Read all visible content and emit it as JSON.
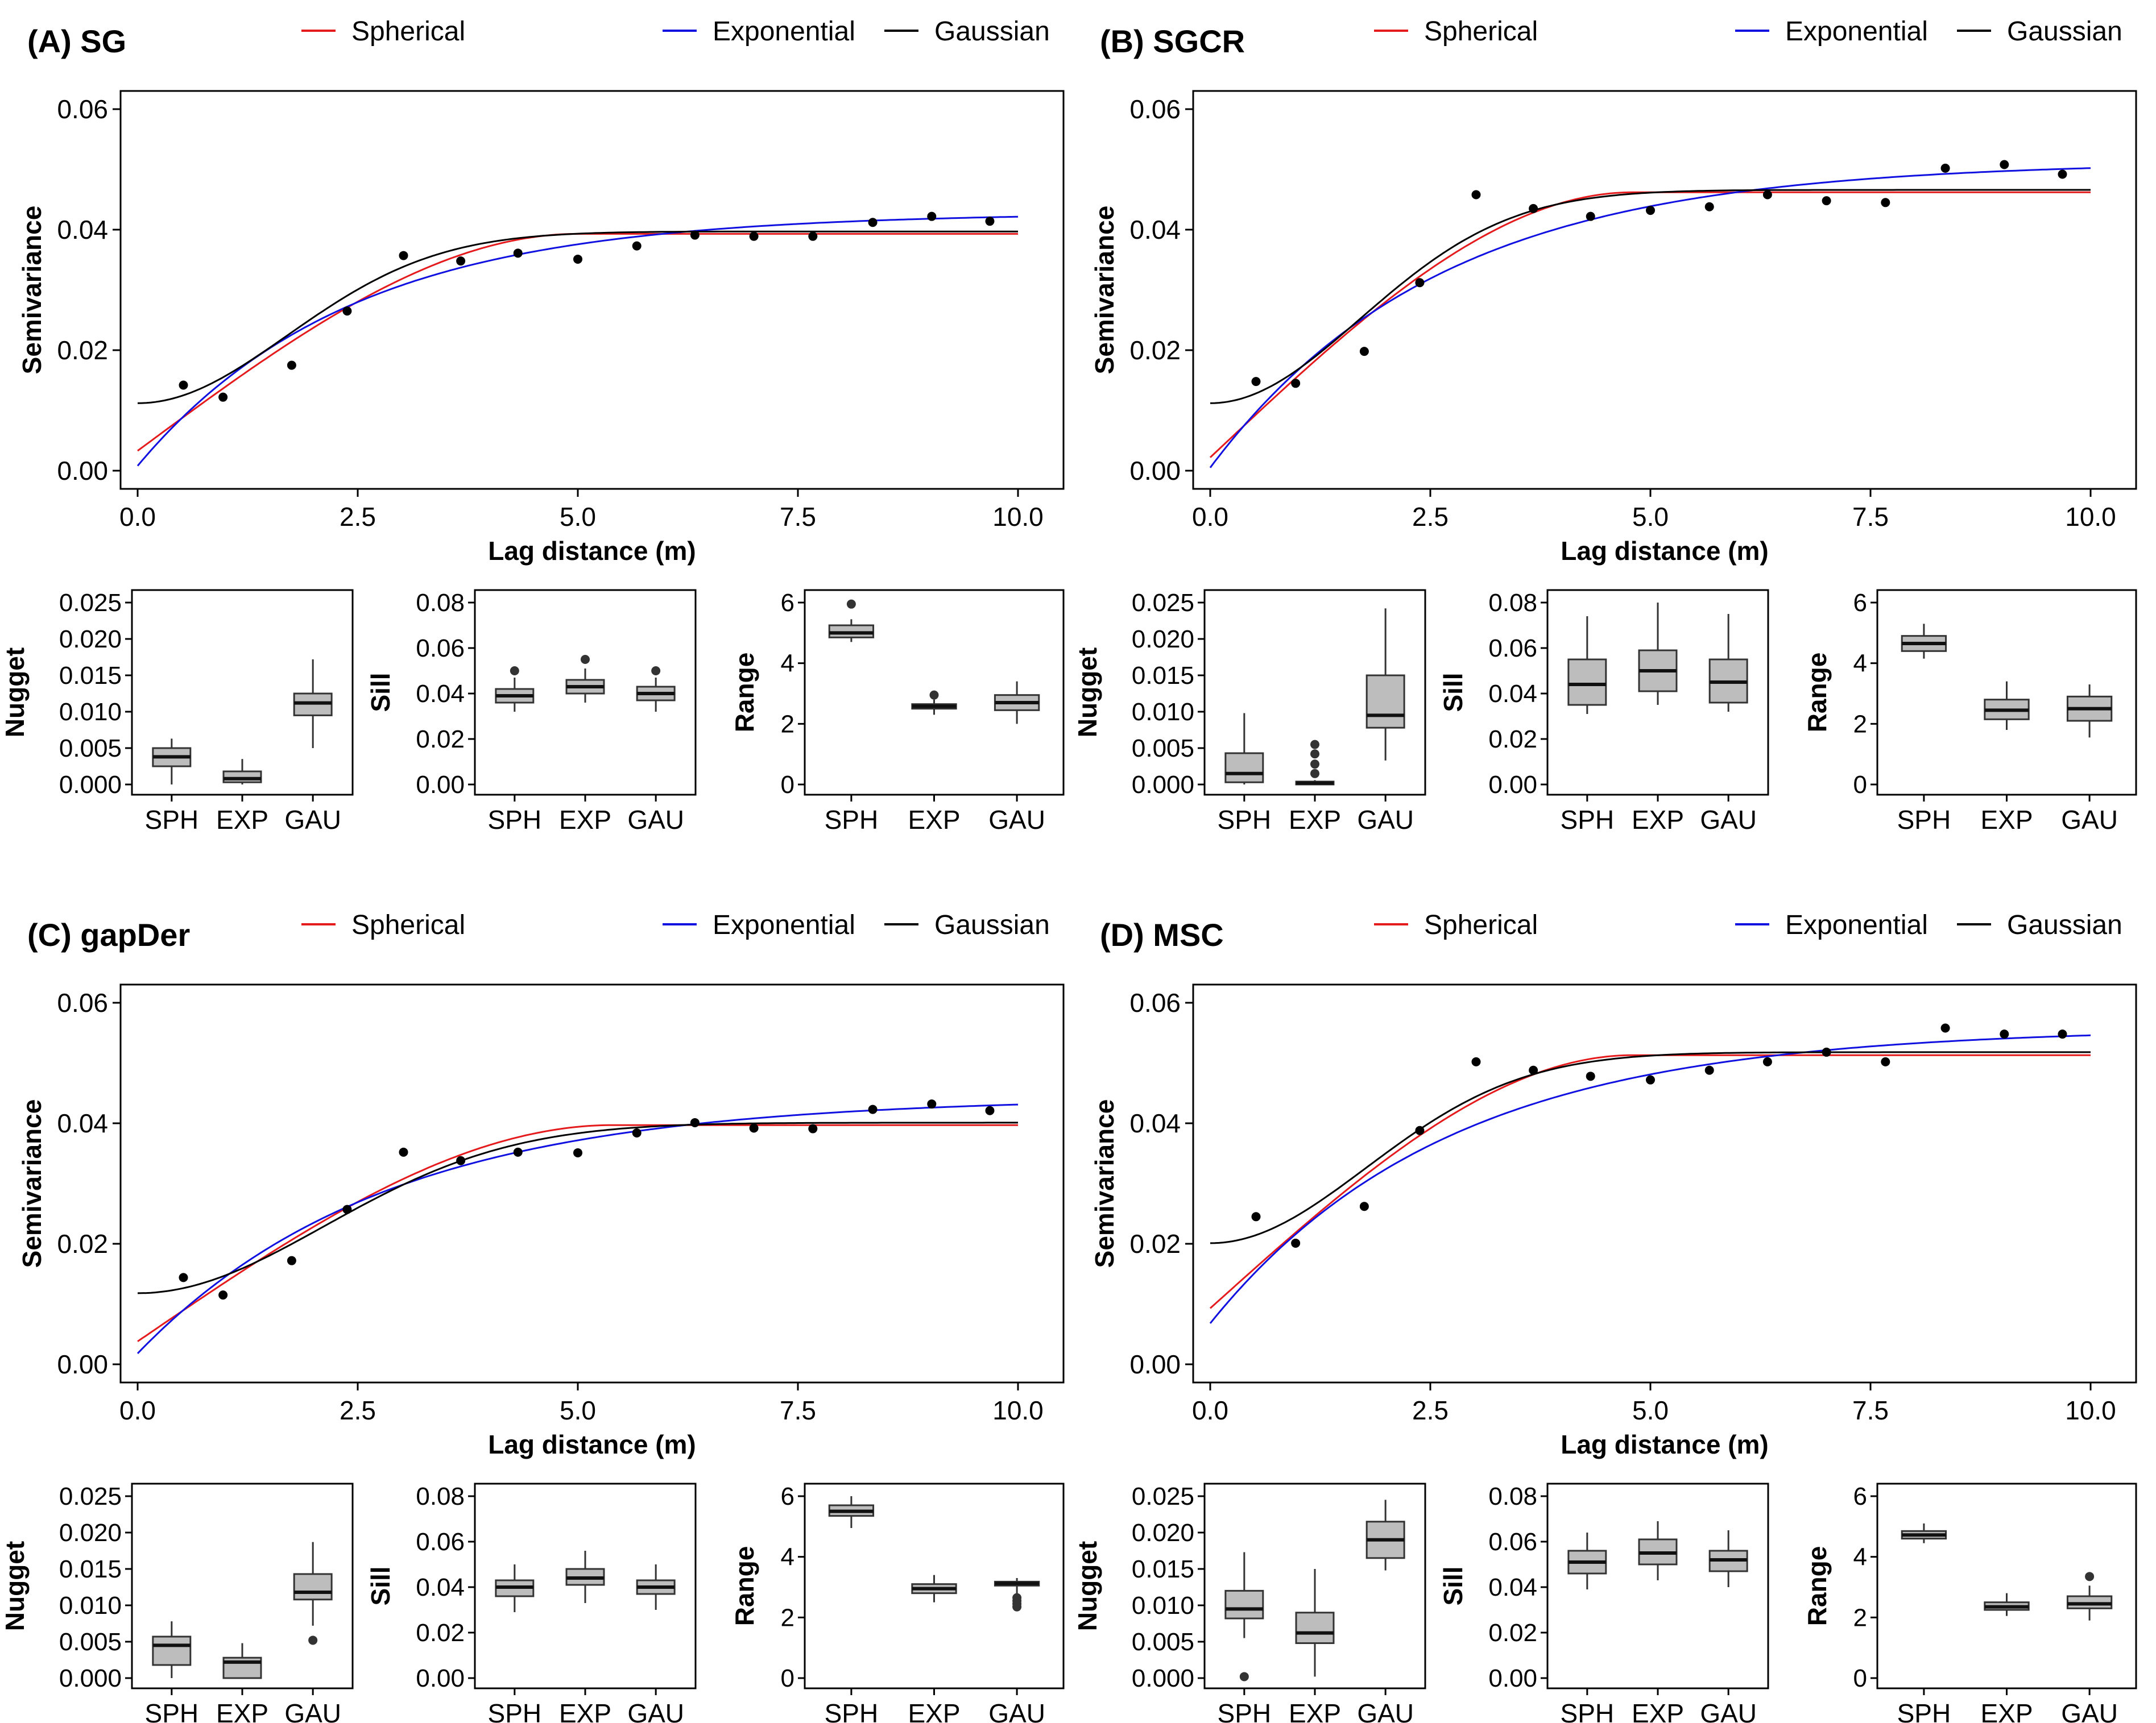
{
  "colors": {
    "spherical": "#e41a1c",
    "exponential": "#1010e0",
    "gaussian": "#000000",
    "box_fill": "#bdbdbd"
  },
  "legend": [
    {
      "key": "spherical",
      "label": "Spherical"
    },
    {
      "key": "exponential",
      "label": "Exponential"
    },
    {
      "key": "gaussian",
      "label": "Gaussian"
    }
  ],
  "chart_data": [
    {
      "id": "A",
      "title": "(A) SG",
      "type": "line",
      "main": {
        "xlabel": "Lag distance (m)",
        "ylabel": "Semivariance",
        "xlim": [
          0,
          10
        ],
        "ylim": [
          0,
          0.06
        ],
        "xticks": [
          "0.0",
          "2.5",
          "5.0",
          "7.5",
          "10.0"
        ],
        "yticks": [
          "0.00",
          "0.02",
          "0.04",
          "0.06"
        ],
        "points": {
          "x": [
            0.52,
            0.97,
            1.75,
            2.38,
            3.02,
            3.67,
            4.32,
            5.0,
            5.67,
            6.33,
            7.0,
            7.67,
            8.35,
            9.02,
            9.68
          ],
          "y": [
            0.0142,
            0.0122,
            0.0175,
            0.0265,
            0.0357,
            0.0348,
            0.0361,
            0.0351,
            0.0373,
            0.0391,
            0.0389,
            0.0389,
            0.0412,
            0.0422,
            0.0414
          ]
        },
        "models": {
          "spherical": {
            "nugget": 0.0033,
            "sill": 0.0393,
            "range": 5.0
          },
          "exponential": {
            "nugget": 0.0008,
            "sill": 0.0428,
            "range": 2.4
          },
          "gaussian": {
            "nugget": 0.0112,
            "sill": 0.0397,
            "range": 2.4
          }
        }
      },
      "boxes": [
        {
          "ylabel": "Nugget",
          "ylim": [
            0,
            0.025
          ],
          "yticks": [
            "0.000",
            "0.005",
            "0.010",
            "0.015",
            "0.020",
            "0.025"
          ],
          "categories": [
            "SPH",
            "EXP",
            "GAU"
          ],
          "stats": [
            {
              "min": 0.0,
              "q1": 0.0025,
              "median": 0.0038,
              "q3": 0.005,
              "max": 0.0063,
              "outliers": []
            },
            {
              "min": 0.0,
              "q1": 0.0003,
              "median": 0.0008,
              "q3": 0.0018,
              "max": 0.0035,
              "outliers": []
            },
            {
              "min": 0.005,
              "q1": 0.0095,
              "median": 0.0112,
              "q3": 0.0125,
              "max": 0.0172,
              "outliers": []
            }
          ]
        },
        {
          "ylabel": "Sill",
          "ylim": [
            0,
            0.08
          ],
          "yticks": [
            "0.00",
            "0.02",
            "0.04",
            "0.06",
            "0.08"
          ],
          "categories": [
            "SPH",
            "EXP",
            "GAU"
          ],
          "stats": [
            {
              "min": 0.032,
              "q1": 0.036,
              "median": 0.039,
              "q3": 0.042,
              "max": 0.047,
              "outliers": [
                0.05
              ]
            },
            {
              "min": 0.036,
              "q1": 0.04,
              "median": 0.043,
              "q3": 0.046,
              "max": 0.051,
              "outliers": [
                0.055
              ]
            },
            {
              "min": 0.032,
              "q1": 0.037,
              "median": 0.04,
              "q3": 0.043,
              "max": 0.047,
              "outliers": [
                0.05
              ]
            }
          ]
        },
        {
          "ylabel": "Range",
          "ylim": [
            0,
            6
          ],
          "yticks": [
            "0",
            "2",
            "4",
            "6"
          ],
          "categories": [
            "SPH",
            "EXP",
            "GAU"
          ],
          "stats": [
            {
              "min": 4.7,
              "q1": 4.85,
              "median": 5.0,
              "q3": 5.25,
              "max": 5.45,
              "outliers": [
                5.95
              ]
            },
            {
              "min": 2.3,
              "q1": 2.5,
              "median": 2.58,
              "q3": 2.65,
              "max": 2.8,
              "outliers": [
                2.95
              ]
            },
            {
              "min": 2.0,
              "q1": 2.45,
              "median": 2.7,
              "q3": 2.95,
              "max": 3.4,
              "outliers": []
            }
          ]
        }
      ]
    },
    {
      "id": "B",
      "title": "(B) SGCR",
      "type": "line",
      "main": {
        "xlabel": "Lag distance (m)",
        "ylabel": "Semivariance",
        "xlim": [
          0,
          10
        ],
        "ylim": [
          0,
          0.06
        ],
        "xticks": [
          "0.0",
          "2.5",
          "5.0",
          "7.5",
          "10.0"
        ],
        "yticks": [
          "0.00",
          "0.02",
          "0.04",
          "0.06"
        ],
        "points": {
          "x": [
            0.52,
            0.97,
            1.75,
            2.38,
            3.02,
            3.67,
            4.32,
            5.0,
            5.67,
            6.33,
            7.0,
            7.67,
            8.35,
            9.02,
            9.68
          ],
          "y": [
            0.0148,
            0.0145,
            0.0198,
            0.0312,
            0.0458,
            0.0435,
            0.0422,
            0.0432,
            0.0438,
            0.0458,
            0.0448,
            0.0445,
            0.0502,
            0.0508,
            0.0492
          ]
        },
        "models": {
          "spherical": {
            "nugget": 0.0022,
            "sill": 0.0462,
            "range": 4.8
          },
          "exponential": {
            "nugget": 0.0005,
            "sill": 0.0513,
            "range": 2.6
          },
          "gaussian": {
            "nugget": 0.0112,
            "sill": 0.0466,
            "range": 2.4
          }
        }
      },
      "boxes": [
        {
          "ylabel": "Nugget",
          "ylim": [
            0,
            0.025
          ],
          "yticks": [
            "0.000",
            "0.005",
            "0.010",
            "0.015",
            "0.020",
            "0.025"
          ],
          "categories": [
            "SPH",
            "EXP",
            "GAU"
          ],
          "stats": [
            {
              "min": 0.0,
              "q1": 0.0003,
              "median": 0.0015,
              "q3": 0.0043,
              "max": 0.0098,
              "outliers": []
            },
            {
              "min": 0.0,
              "q1": 0.0,
              "median": 0.0002,
              "q3": 0.0004,
              "max": 0.0006,
              "outliers": [
                0.0015,
                0.0028,
                0.0042,
                0.0055
              ]
            },
            {
              "min": 0.0033,
              "q1": 0.0078,
              "median": 0.0095,
              "q3": 0.015,
              "max": 0.0242,
              "outliers": []
            }
          ]
        },
        {
          "ylabel": "Sill",
          "ylim": [
            0,
            0.08
          ],
          "yticks": [
            "0.00",
            "0.02",
            "0.04",
            "0.06",
            "0.08"
          ],
          "categories": [
            "SPH",
            "EXP",
            "GAU"
          ],
          "stats": [
            {
              "min": 0.031,
              "q1": 0.035,
              "median": 0.044,
              "q3": 0.055,
              "max": 0.074,
              "outliers": []
            },
            {
              "min": 0.035,
              "q1": 0.041,
              "median": 0.05,
              "q3": 0.059,
              "max": 0.08,
              "outliers": []
            },
            {
              "min": 0.032,
              "q1": 0.036,
              "median": 0.045,
              "q3": 0.055,
              "max": 0.075,
              "outliers": []
            }
          ]
        },
        {
          "ylabel": "Range",
          "ylim": [
            0,
            6
          ],
          "yticks": [
            "0",
            "2",
            "4",
            "6"
          ],
          "categories": [
            "SPH",
            "EXP",
            "GAU"
          ],
          "stats": [
            {
              "min": 4.15,
              "q1": 4.4,
              "median": 4.65,
              "q3": 4.9,
              "max": 5.3,
              "outliers": []
            },
            {
              "min": 1.8,
              "q1": 2.15,
              "median": 2.45,
              "q3": 2.8,
              "max": 3.4,
              "outliers": []
            },
            {
              "min": 1.55,
              "q1": 2.1,
              "median": 2.5,
              "q3": 2.9,
              "max": 3.3,
              "outliers": []
            }
          ]
        }
      ]
    },
    {
      "id": "C",
      "title": "(C) gapDer",
      "type": "line",
      "main": {
        "xlabel": "Lag distance (m)",
        "ylabel": "Semivariance",
        "xlim": [
          0,
          10
        ],
        "ylim": [
          0,
          0.06
        ],
        "xticks": [
          "0.0",
          "2.5",
          "5.0",
          "7.5",
          "10.0"
        ],
        "yticks": [
          "0.00",
          "0.02",
          "0.04",
          "0.06"
        ],
        "points": {
          "x": [
            0.52,
            0.97,
            1.75,
            2.38,
            3.02,
            3.67,
            4.32,
            5.0,
            5.67,
            6.33,
            7.0,
            7.67,
            8.35,
            9.02,
            9.68
          ],
          "y": [
            0.0144,
            0.0115,
            0.0172,
            0.0257,
            0.0352,
            0.0338,
            0.0352,
            0.0351,
            0.0384,
            0.0401,
            0.0392,
            0.0391,
            0.0423,
            0.0432,
            0.0421
          ]
        },
        "models": {
          "spherical": {
            "nugget": 0.0038,
            "sill": 0.0397,
            "range": 5.4
          },
          "exponential": {
            "nugget": 0.0018,
            "sill": 0.0443,
            "range": 2.8
          },
          "gaussian": {
            "nugget": 0.0118,
            "sill": 0.0401,
            "range": 3.0
          }
        }
      },
      "boxes": [
        {
          "ylabel": "Nugget",
          "ylim": [
            0,
            0.025
          ],
          "yticks": [
            "0.000",
            "0.005",
            "0.010",
            "0.015",
            "0.020",
            "0.025"
          ],
          "categories": [
            "SPH",
            "EXP",
            "GAU"
          ],
          "stats": [
            {
              "min": 0.0,
              "q1": 0.0018,
              "median": 0.0045,
              "q3": 0.0057,
              "max": 0.0078,
              "outliers": []
            },
            {
              "min": 0.0,
              "q1": 0.0,
              "median": 0.0022,
              "q3": 0.0028,
              "max": 0.0048,
              "outliers": []
            },
            {
              "min": 0.0072,
              "q1": 0.0108,
              "median": 0.0118,
              "q3": 0.0143,
              "max": 0.0187,
              "outliers": [
                0.0052
              ]
            }
          ]
        },
        {
          "ylabel": "Sill",
          "ylim": [
            0,
            0.08
          ],
          "yticks": [
            "0.00",
            "0.02",
            "0.04",
            "0.06",
            "0.08"
          ],
          "categories": [
            "SPH",
            "EXP",
            "GAU"
          ],
          "stats": [
            {
              "min": 0.029,
              "q1": 0.036,
              "median": 0.04,
              "q3": 0.043,
              "max": 0.05,
              "outliers": []
            },
            {
              "min": 0.033,
              "q1": 0.041,
              "median": 0.044,
              "q3": 0.048,
              "max": 0.056,
              "outliers": []
            },
            {
              "min": 0.03,
              "q1": 0.037,
              "median": 0.04,
              "q3": 0.043,
              "max": 0.05,
              "outliers": []
            }
          ]
        },
        {
          "ylabel": "Range",
          "ylim": [
            0,
            6
          ],
          "yticks": [
            "0",
            "2",
            "4",
            "6"
          ],
          "categories": [
            "SPH",
            "EXP",
            "GAU"
          ],
          "stats": [
            {
              "min": 4.95,
              "q1": 5.35,
              "median": 5.5,
              "q3": 5.7,
              "max": 6.0,
              "outliers": []
            },
            {
              "min": 2.5,
              "q1": 2.8,
              "median": 2.95,
              "q3": 3.1,
              "max": 3.4,
              "outliers": []
            },
            {
              "min": 2.75,
              "q1": 3.05,
              "median": 3.12,
              "q3": 3.18,
              "max": 3.3,
              "outliers": [
                2.35,
                2.45,
                2.55,
                2.65
              ]
            }
          ]
        }
      ]
    },
    {
      "id": "D",
      "title": "(D) MSC",
      "type": "line",
      "main": {
        "xlabel": "Lag distance (m)",
        "ylabel": "Semivariance",
        "xlim": [
          0,
          10
        ],
        "ylim": [
          0,
          0.06
        ],
        "xticks": [
          "0.0",
          "2.5",
          "5.0",
          "7.5",
          "10.0"
        ],
        "yticks": [
          "0.00",
          "0.02",
          "0.04",
          "0.06"
        ],
        "points": {
          "x": [
            0.52,
            0.97,
            1.75,
            2.38,
            3.02,
            3.67,
            4.32,
            5.0,
            5.67,
            6.33,
            7.0,
            7.67,
            8.35,
            9.02,
            9.68
          ],
          "y": [
            0.0245,
            0.0201,
            0.0262,
            0.0388,
            0.0502,
            0.0488,
            0.0478,
            0.0472,
            0.0488,
            0.0502,
            0.0518,
            0.0502,
            0.0558,
            0.0548,
            0.0548
          ]
        },
        "models": {
          "spherical": {
            "nugget": 0.0093,
            "sill": 0.0513,
            "range": 4.8
          },
          "exponential": {
            "nugget": 0.0068,
            "sill": 0.0558,
            "range": 2.7
          },
          "gaussian": {
            "nugget": 0.0201,
            "sill": 0.0518,
            "range": 2.5
          }
        }
      },
      "boxes": [
        {
          "ylabel": "Nugget",
          "ylim": [
            0,
            0.025
          ],
          "yticks": [
            "0.000",
            "0.005",
            "0.010",
            "0.015",
            "0.020",
            "0.025"
          ],
          "categories": [
            "SPH",
            "EXP",
            "GAU"
          ],
          "stats": [
            {
              "min": 0.0055,
              "q1": 0.0082,
              "median": 0.0095,
              "q3": 0.012,
              "max": 0.0173,
              "outliers": [
                0.0002
              ]
            },
            {
              "min": 0.0002,
              "q1": 0.0048,
              "median": 0.0062,
              "q3": 0.009,
              "max": 0.015,
              "outliers": []
            },
            {
              "min": 0.0148,
              "q1": 0.0165,
              "median": 0.019,
              "q3": 0.0215,
              "max": 0.0245,
              "outliers": []
            }
          ]
        },
        {
          "ylabel": "Sill",
          "ylim": [
            0,
            0.08
          ],
          "yticks": [
            "0.00",
            "0.02",
            "0.04",
            "0.06",
            "0.08"
          ],
          "categories": [
            "SPH",
            "EXP",
            "GAU"
          ],
          "stats": [
            {
              "min": 0.039,
              "q1": 0.046,
              "median": 0.051,
              "q3": 0.056,
              "max": 0.064,
              "outliers": []
            },
            {
              "min": 0.043,
              "q1": 0.05,
              "median": 0.055,
              "q3": 0.061,
              "max": 0.069,
              "outliers": []
            },
            {
              "min": 0.04,
              "q1": 0.047,
              "median": 0.052,
              "q3": 0.056,
              "max": 0.065,
              "outliers": []
            }
          ]
        },
        {
          "ylabel": "Range",
          "ylim": [
            0,
            6
          ],
          "yticks": [
            "0",
            "2",
            "4",
            "6"
          ],
          "categories": [
            "SPH",
            "EXP",
            "GAU"
          ],
          "stats": [
            {
              "min": 4.45,
              "q1": 4.6,
              "median": 4.72,
              "q3": 4.85,
              "max": 5.1,
              "outliers": []
            },
            {
              "min": 2.05,
              "q1": 2.25,
              "median": 2.35,
              "q3": 2.5,
              "max": 2.8,
              "outliers": []
            },
            {
              "min": 1.9,
              "q1": 2.3,
              "median": 2.45,
              "q3": 2.7,
              "max": 3.05,
              "outliers": [
                3.35
              ]
            }
          ]
        }
      ]
    }
  ]
}
